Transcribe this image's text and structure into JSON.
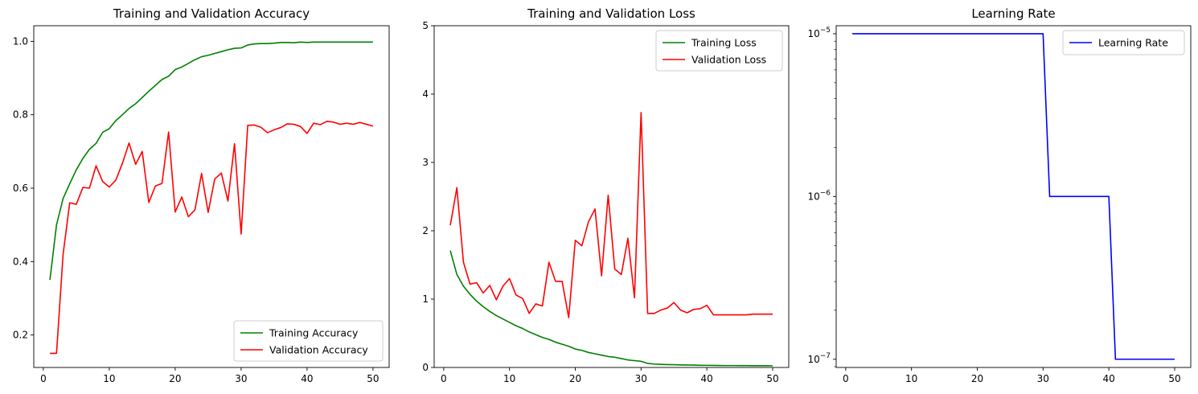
{
  "chart_data": [
    {
      "type": "line",
      "title": "Training and Validation Accuracy",
      "xlabel": "",
      "ylabel": "",
      "xlim": [
        -1.45,
        52.45
      ],
      "ylim": [
        0.1115,
        1.0425
      ],
      "xticks": [
        0,
        10,
        20,
        30,
        40,
        50
      ],
      "yticks": [
        0.2,
        0.4,
        0.6,
        0.8,
        1.0
      ],
      "ytick_labels": [
        "0.2",
        "0.4",
        "0.6",
        "0.8",
        "1.0"
      ],
      "legend": "lower-right",
      "grid": false,
      "x": [
        1,
        2,
        3,
        4,
        5,
        6,
        7,
        8,
        9,
        10,
        11,
        12,
        13,
        14,
        15,
        16,
        17,
        18,
        19,
        20,
        21,
        22,
        23,
        24,
        25,
        26,
        27,
        28,
        29,
        30,
        31,
        32,
        33,
        34,
        35,
        36,
        37,
        38,
        39,
        40,
        41,
        42,
        43,
        44,
        45,
        46,
        47,
        48,
        49,
        50
      ],
      "series": [
        {
          "name": "Training Accuracy",
          "color": "#008000",
          "values": [
            0.35,
            0.5,
            0.572,
            0.612,
            0.65,
            0.681,
            0.706,
            0.722,
            0.752,
            0.762,
            0.784,
            0.8,
            0.817,
            0.83,
            0.847,
            0.864,
            0.88,
            0.896,
            0.905,
            0.923,
            0.93,
            0.94,
            0.95,
            0.958,
            0.962,
            0.967,
            0.972,
            0.977,
            0.981,
            0.982,
            0.99,
            0.993,
            0.994,
            0.994,
            0.995,
            0.997,
            0.997,
            0.996,
            0.998,
            0.997,
            0.998,
            0.998,
            0.998,
            0.998,
            0.998,
            0.998,
            0.998,
            0.998,
            0.998,
            0.998
          ]
        },
        {
          "name": "Validation Accuracy",
          "color": "#ff0000",
          "values": [
            0.15,
            0.15,
            0.42,
            0.56,
            0.556,
            0.602,
            0.6,
            0.661,
            0.618,
            0.603,
            0.622,
            0.668,
            0.723,
            0.665,
            0.7,
            0.561,
            0.606,
            0.613,
            0.753,
            0.535,
            0.576,
            0.522,
            0.541,
            0.64,
            0.534,
            0.625,
            0.641,
            0.565,
            0.721,
            0.475,
            0.771,
            0.772,
            0.766,
            0.751,
            0.759,
            0.765,
            0.775,
            0.774,
            0.768,
            0.749,
            0.777,
            0.773,
            0.782,
            0.78,
            0.774,
            0.777,
            0.774,
            0.779,
            0.774,
            0.769
          ]
        }
      ]
    },
    {
      "type": "line",
      "title": "Training and Validation Loss",
      "xlabel": "",
      "ylabel": "",
      "xlim": [
        -1.45,
        52.45
      ],
      "ylim": [
        0,
        5
      ],
      "xticks": [
        0,
        10,
        20,
        30,
        40,
        50
      ],
      "yticks": [
        0,
        1,
        2,
        3,
        4,
        5
      ],
      "ytick_labels": [
        "0",
        "1",
        "2",
        "3",
        "4",
        "5"
      ],
      "legend": "top-right",
      "grid": false,
      "x": [
        1,
        2,
        3,
        4,
        5,
        6,
        7,
        8,
        9,
        10,
        11,
        12,
        13,
        14,
        15,
        16,
        17,
        18,
        19,
        20,
        21,
        22,
        23,
        24,
        25,
        26,
        27,
        28,
        29,
        30,
        31,
        32,
        33,
        34,
        35,
        36,
        37,
        38,
        39,
        40,
        41,
        42,
        43,
        44,
        45,
        46,
        47,
        48,
        49,
        50
      ],
      "series": [
        {
          "name": "Training Loss",
          "color": "#008000",
          "values": [
            1.71,
            1.36,
            1.19,
            1.07,
            0.97,
            0.89,
            0.82,
            0.76,
            0.71,
            0.66,
            0.61,
            0.57,
            0.52,
            0.48,
            0.44,
            0.41,
            0.37,
            0.34,
            0.31,
            0.27,
            0.25,
            0.22,
            0.2,
            0.18,
            0.16,
            0.15,
            0.13,
            0.11,
            0.1,
            0.09,
            0.06,
            0.05,
            0.045,
            0.042,
            0.04,
            0.038,
            0.036,
            0.034,
            0.032,
            0.031,
            0.03,
            0.029,
            0.028,
            0.028,
            0.027,
            0.027,
            0.026,
            0.026,
            0.026,
            0.025
          ]
        },
        {
          "name": "Validation Loss",
          "color": "#ff0000",
          "values": [
            2.08,
            2.63,
            1.54,
            1.22,
            1.24,
            1.09,
            1.2,
            0.99,
            1.19,
            1.3,
            1.06,
            1.01,
            0.79,
            0.93,
            0.9,
            1.54,
            1.26,
            1.26,
            0.73,
            1.86,
            1.78,
            2.13,
            2.32,
            1.34,
            2.52,
            1.44,
            1.36,
            1.89,
            1.02,
            3.73,
            0.79,
            0.79,
            0.84,
            0.87,
            0.95,
            0.84,
            0.8,
            0.85,
            0.86,
            0.91,
            0.77,
            0.77,
            0.77,
            0.77,
            0.77,
            0.77,
            0.78,
            0.78,
            0.78,
            0.78
          ]
        }
      ]
    },
    {
      "type": "line",
      "title": "Learning Rate",
      "xlabel": "",
      "ylabel": "",
      "yscale": "log",
      "xlim": [
        -1.45,
        52.45
      ],
      "ylim": [
        8.9e-08,
        1.12e-05
      ],
      "xticks": [
        0,
        10,
        20,
        30,
        40,
        50
      ],
      "yticks": [
        1e-07,
        1e-06,
        1e-05
      ],
      "ytick_bases": [
        "10",
        "10",
        "10"
      ],
      "ytick_exponents": [
        "−7",
        "−6",
        "−5"
      ],
      "legend": "top-right",
      "grid": false,
      "x": [
        1,
        2,
        3,
        4,
        5,
        6,
        7,
        8,
        9,
        10,
        11,
        12,
        13,
        14,
        15,
        16,
        17,
        18,
        19,
        20,
        21,
        22,
        23,
        24,
        25,
        26,
        27,
        28,
        29,
        30,
        31,
        32,
        33,
        34,
        35,
        36,
        37,
        38,
        39,
        40,
        41,
        42,
        43,
        44,
        45,
        46,
        47,
        48,
        49,
        50
      ],
      "series": [
        {
          "name": "Learning Rate",
          "color": "#0000ff",
          "values": [
            1e-05,
            1e-05,
            1e-05,
            1e-05,
            1e-05,
            1e-05,
            1e-05,
            1e-05,
            1e-05,
            1e-05,
            1e-05,
            1e-05,
            1e-05,
            1e-05,
            1e-05,
            1e-05,
            1e-05,
            1e-05,
            1e-05,
            1e-05,
            1e-05,
            1e-05,
            1e-05,
            1e-05,
            1e-05,
            1e-05,
            1e-05,
            1e-05,
            1e-05,
            1e-05,
            1e-06,
            1e-06,
            1e-06,
            1e-06,
            1e-06,
            1e-06,
            1e-06,
            1e-06,
            1e-06,
            1e-06,
            1e-07,
            1e-07,
            1e-07,
            1e-07,
            1e-07,
            1e-07,
            1e-07,
            1e-07,
            1e-07,
            1e-07
          ]
        }
      ]
    }
  ]
}
